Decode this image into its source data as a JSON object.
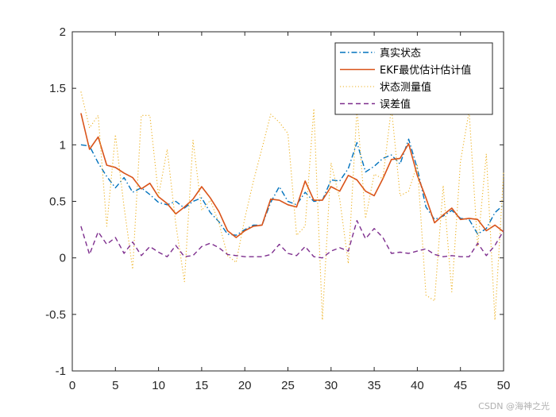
{
  "chart_data": {
    "type": "line",
    "title": "",
    "xlabel": "",
    "ylabel": "",
    "xlim": [
      0,
      50
    ],
    "ylim": [
      -1,
      2
    ],
    "xticks": [
      0,
      5,
      10,
      15,
      20,
      25,
      30,
      35,
      40,
      45,
      50
    ],
    "yticks": [
      -1,
      -0.5,
      0,
      0.5,
      1,
      1.5,
      2
    ],
    "grid": false,
    "legend_position": "top-right",
    "x": [
      1,
      2,
      3,
      4,
      5,
      6,
      7,
      8,
      9,
      10,
      11,
      12,
      13,
      14,
      15,
      16,
      17,
      18,
      19,
      20,
      21,
      22,
      23,
      24,
      25,
      26,
      27,
      28,
      29,
      30,
      31,
      32,
      33,
      34,
      35,
      36,
      37,
      38,
      39,
      40,
      41,
      42,
      43,
      44,
      45,
      46,
      47,
      48,
      49,
      50
    ],
    "series": [
      {
        "name": "真实状态",
        "color": "#0072BD",
        "style": "dashdot",
        "values": [
          1.0,
          0.99,
          0.84,
          0.72,
          0.62,
          0.71,
          0.58,
          0.62,
          0.56,
          0.49,
          0.47,
          0.5,
          0.44,
          0.5,
          0.53,
          0.4,
          0.32,
          0.21,
          0.2,
          0.25,
          0.29,
          0.29,
          0.49,
          0.63,
          0.5,
          0.47,
          0.58,
          0.5,
          0.51,
          0.69,
          0.68,
          0.79,
          1.02,
          0.76,
          0.81,
          0.88,
          0.91,
          0.83,
          1.05,
          0.79,
          0.45,
          0.34,
          0.37,
          0.42,
          0.35,
          0.34,
          0.21,
          0.26,
          0.4,
          0.47
        ]
      },
      {
        "name": "EKF最优估计估计值",
        "color": "#D95319",
        "style": "solid",
        "values": [
          1.28,
          0.96,
          1.07,
          0.82,
          0.8,
          0.75,
          0.71,
          0.61,
          0.66,
          0.54,
          0.48,
          0.39,
          0.45,
          0.52,
          0.63,
          0.53,
          0.41,
          0.24,
          0.18,
          0.24,
          0.28,
          0.29,
          0.52,
          0.51,
          0.47,
          0.45,
          0.68,
          0.51,
          0.51,
          0.63,
          0.59,
          0.73,
          0.69,
          0.59,
          0.55,
          0.7,
          0.87,
          0.88,
          1.01,
          0.73,
          0.53,
          0.31,
          0.38,
          0.44,
          0.34,
          0.35,
          0.34,
          0.24,
          0.29,
          0.23
        ]
      },
      {
        "name": "状态测量值",
        "color": "#EDB120",
        "style": "dotted",
        "values": [
          1.47,
          1.15,
          1.26,
          0.28,
          1.09,
          0.45,
          -0.1,
          1.26,
          1.26,
          0.55,
          0.96,
          0.3,
          -0.21,
          1.04,
          0.42,
          0.51,
          0.31,
          0.02,
          -0.04,
          0.35,
          0.68,
          0.97,
          1.27,
          1.2,
          1.1,
          0.2,
          0.28,
          1.32,
          -0.55,
          0.84,
          0.52,
          -0.05,
          1.32,
          0.35,
          0.74,
          0.7,
          1.33,
          0.55,
          0.59,
          0.83,
          -0.33,
          -0.38,
          0.64,
          -0.3,
          0.85,
          1.3,
          0.1,
          0.92,
          -0.55,
          0.76
        ]
      },
      {
        "name": "误差值",
        "color": "#7E2F8E",
        "style": "dashed",
        "values": [
          0.28,
          0.03,
          0.23,
          0.12,
          0.18,
          0.04,
          0.14,
          0.02,
          0.1,
          0.05,
          0.01,
          0.11,
          0.01,
          0.02,
          0.1,
          0.13,
          0.09,
          0.03,
          0.02,
          0.01,
          0.01,
          0.01,
          0.03,
          0.12,
          0.04,
          0.02,
          0.1,
          0.01,
          0.0,
          0.06,
          0.09,
          0.06,
          0.33,
          0.17,
          0.26,
          0.18,
          0.04,
          0.05,
          0.04,
          0.06,
          0.08,
          0.03,
          0.01,
          0.02,
          0.01,
          0.01,
          0.13,
          0.02,
          0.11,
          0.24
        ]
      }
    ]
  },
  "watermark": "CSDN @海神之光"
}
